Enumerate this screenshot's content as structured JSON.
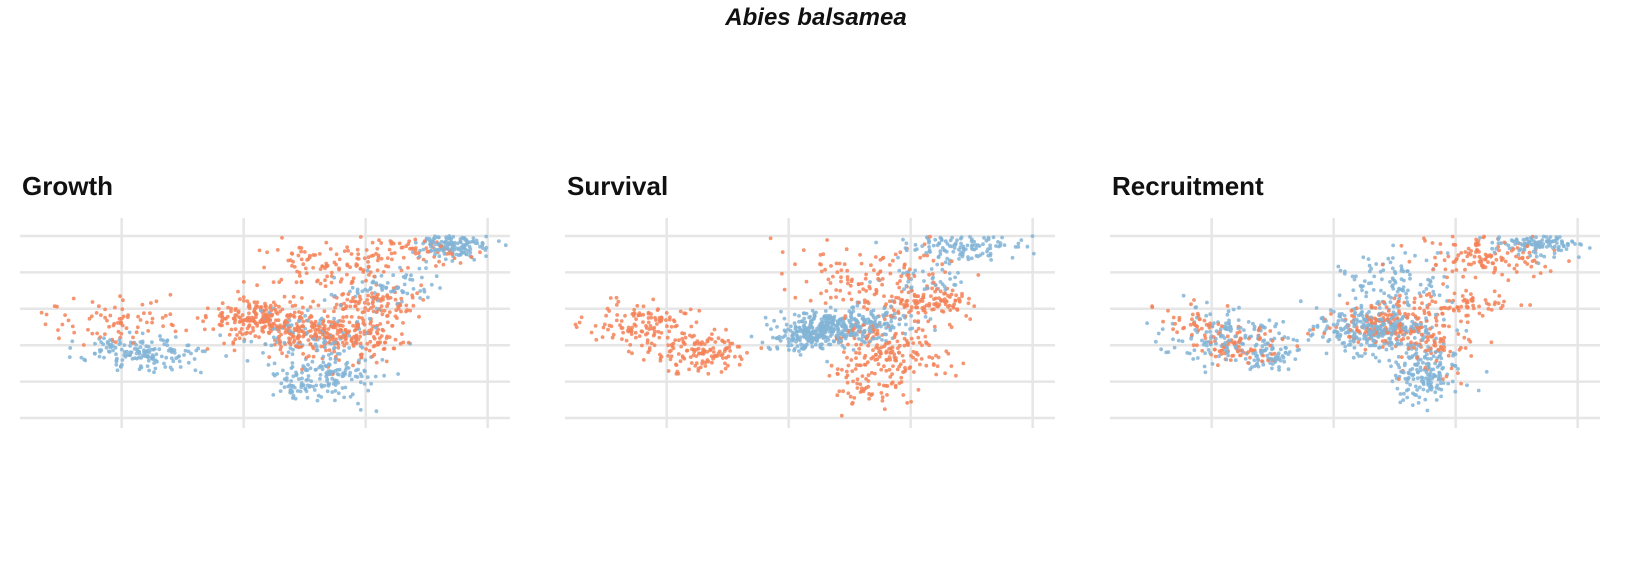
{
  "title": "Abies balsamea",
  "colors": {
    "orange": "#f58258",
    "blue": "#83b4d6",
    "grid": "#e6e6e6"
  },
  "chart_data": [
    {
      "type": "scatter",
      "title": "Growth",
      "xlim": [
        -100,
        -52
      ],
      "ylim": [
        40,
        57.5
      ],
      "x_gridlines": [
        -90,
        -78,
        -66,
        -54
      ],
      "y_gridlines": [
        40,
        43.5,
        47,
        50.5,
        54,
        57.5
      ],
      "series": [
        {
          "color": "orange",
          "clusters": [
            {
              "x": -91,
              "y": 49.2,
              "sx": 3.5,
              "sy": 1.1,
              "n": 80
            },
            {
              "x": -77,
              "y": 49.4,
              "sx": 2.2,
              "sy": 1.0,
              "n": 160
            },
            {
              "x": -72,
              "y": 48.5,
              "sx": 3.2,
              "sy": 1.3,
              "n": 230
            },
            {
              "x": -66.5,
              "y": 47.6,
              "sx": 2.0,
              "sy": 1.0,
              "n": 110
            },
            {
              "x": -65,
              "y": 51.0,
              "sx": 2.6,
              "sy": 0.6,
              "n": 90
            },
            {
              "x": -69,
              "y": 55.0,
              "sx": 3.5,
              "sy": 1.3,
              "n": 120
            },
            {
              "x": -61,
              "y": 56.0,
              "sx": 2.5,
              "sy": 0.8,
              "n": 60
            }
          ]
        },
        {
          "color": "blue",
          "clusters": [
            {
              "x": -89,
              "y": 46.5,
              "sx": 2.5,
              "sy": 0.9,
              "n": 110
            },
            {
              "x": -86,
              "y": 46.0,
              "sx": 2.0,
              "sy": 0.8,
              "n": 50
            },
            {
              "x": -72,
              "y": 48.0,
              "sx": 3.0,
              "sy": 1.3,
              "n": 90
            },
            {
              "x": -69,
              "y": 44.0,
              "sx": 2.0,
              "sy": 1.3,
              "n": 130
            },
            {
              "x": -73,
              "y": 43.0,
              "sx": 0.9,
              "sy": 0.9,
              "n": 40
            },
            {
              "x": -57.5,
              "y": 56.6,
              "sx": 1.8,
              "sy": 0.6,
              "n": 150
            },
            {
              "x": -64,
              "y": 52.5,
              "sx": 2.5,
              "sy": 1.0,
              "n": 70
            }
          ]
        }
      ]
    },
    {
      "type": "scatter",
      "title": "Survival",
      "xlim": [
        -100,
        -52
      ],
      "ylim": [
        40,
        57.5
      ],
      "x_gridlines": [
        -90,
        -78,
        -66,
        -54
      ],
      "y_gridlines": [
        40,
        43.5,
        47,
        50.5,
        54,
        57.5
      ],
      "series": [
        {
          "color": "orange",
          "clusters": [
            {
              "x": -92,
              "y": 49.0,
              "sx": 2.8,
              "sy": 1.1,
              "n": 140
            },
            {
              "x": -86.5,
              "y": 46.3,
              "sx": 2.2,
              "sy": 0.9,
              "n": 120
            },
            {
              "x": -68,
              "y": 46.5,
              "sx": 2.5,
              "sy": 1.8,
              "n": 200
            },
            {
              "x": -70,
              "y": 53.5,
              "sx": 4.0,
              "sy": 1.8,
              "n": 130
            },
            {
              "x": -64,
              "y": 51.0,
              "sx": 2.5,
              "sy": 0.7,
              "n": 100
            },
            {
              "x": -71,
              "y": 43.0,
              "sx": 1.5,
              "sy": 1.0,
              "n": 40
            }
          ]
        },
        {
          "color": "blue",
          "clusters": [
            {
              "x": -75,
              "y": 48.3,
              "sx": 2.2,
              "sy": 0.8,
              "n": 320
            },
            {
              "x": -70,
              "y": 49.2,
              "sx": 2.2,
              "sy": 0.9,
              "n": 140
            },
            {
              "x": -61,
              "y": 56.5,
              "sx": 3.0,
              "sy": 0.7,
              "n": 120
            },
            {
              "x": -64,
              "y": 53.5,
              "sx": 2.0,
              "sy": 0.8,
              "n": 40
            }
          ]
        }
      ]
    },
    {
      "type": "scatter",
      "title": "Recruitment",
      "xlim": [
        -100,
        -52
      ],
      "ylim": [
        40,
        57.5
      ],
      "x_gridlines": [
        -90,
        -78,
        -66,
        -54
      ],
      "y_gridlines": [
        40,
        43.5,
        47,
        50.5,
        54,
        57.5
      ],
      "series": [
        {
          "color": "orange",
          "clusters": [
            {
              "x": -87,
              "y": 47.0,
              "sx": 2.2,
              "sy": 1.0,
              "n": 80
            },
            {
              "x": -91,
              "y": 49.0,
              "sx": 2.0,
              "sy": 1.0,
              "n": 40
            },
            {
              "x": -73,
              "y": 49.0,
              "sx": 3.0,
              "sy": 1.0,
              "n": 150
            },
            {
              "x": -63,
              "y": 55.5,
              "sx": 3.5,
              "sy": 1.0,
              "n": 130
            },
            {
              "x": -65,
              "y": 51.0,
              "sx": 2.5,
              "sy": 0.6,
              "n": 70
            },
            {
              "x": -68,
              "y": 47.0,
              "sx": 2.0,
              "sy": 1.4,
              "n": 70
            }
          ]
        },
        {
          "color": "blue",
          "clusters": [
            {
              "x": -89,
              "y": 47.8,
              "sx": 3.0,
              "sy": 1.2,
              "n": 140
            },
            {
              "x": -84,
              "y": 46.0,
              "sx": 1.8,
              "sy": 0.8,
              "n": 70
            },
            {
              "x": -74,
              "y": 48.5,
              "sx": 2.8,
              "sy": 1.1,
              "n": 300
            },
            {
              "x": -69,
              "y": 44.5,
              "sx": 1.8,
              "sy": 1.6,
              "n": 170
            },
            {
              "x": -72,
              "y": 53.0,
              "sx": 3.0,
              "sy": 1.3,
              "n": 100
            },
            {
              "x": -58,
              "y": 56.7,
              "sx": 2.2,
              "sy": 0.5,
              "n": 130
            }
          ]
        }
      ]
    }
  ]
}
